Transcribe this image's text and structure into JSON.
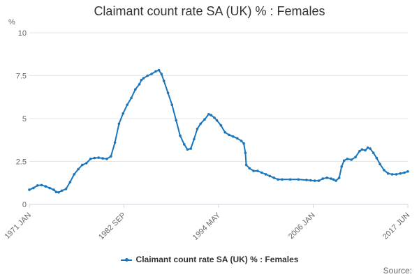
{
  "colors": {
    "series": "#1b75bb",
    "grid": "#e6e6e6",
    "axis": "#ccd6eb"
  },
  "source_label": "Source:",
  "chart_data": {
    "type": "line",
    "title": "Claimant count rate SA (UK) % : Females",
    "unit_label": "%",
    "xlabel": "",
    "ylabel": "%",
    "grid": true,
    "legend_position": "bottom",
    "ylim": [
      0,
      10
    ],
    "yticks": [
      0,
      2.5,
      5,
      7.5,
      10
    ],
    "ytick_labels": [
      "0",
      "2.5",
      "5",
      "7.5",
      "10"
    ],
    "xlim": [
      1971.0,
      2017.42
    ],
    "xticks": [
      "1971 JAN",
      "1982 SEP",
      "1994 MAY",
      "2006 JAN",
      "2017 JUN"
    ],
    "series": [
      {
        "name": "Claimant count rate SA (UK) % : Females",
        "points": [
          [
            1971.0,
            0.85
          ],
          [
            1971.5,
            0.95
          ],
          [
            1972.0,
            1.1
          ],
          [
            1972.5,
            1.12
          ],
          [
            1973.0,
            1.05
          ],
          [
            1973.5,
            0.95
          ],
          [
            1974.0,
            0.85
          ],
          [
            1974.3,
            0.72
          ],
          [
            1974.6,
            0.7
          ],
          [
            1975.0,
            0.8
          ],
          [
            1975.5,
            0.9
          ],
          [
            1976.0,
            1.3
          ],
          [
            1976.5,
            1.75
          ],
          [
            1977.0,
            2.05
          ],
          [
            1977.5,
            2.3
          ],
          [
            1978.0,
            2.4
          ],
          [
            1978.5,
            2.65
          ],
          [
            1979.0,
            2.7
          ],
          [
            1979.5,
            2.72
          ],
          [
            1980.0,
            2.68
          ],
          [
            1980.5,
            2.65
          ],
          [
            1981.0,
            2.8
          ],
          [
            1981.5,
            3.6
          ],
          [
            1982.0,
            4.7
          ],
          [
            1982.5,
            5.3
          ],
          [
            1983.0,
            5.8
          ],
          [
            1983.5,
            6.2
          ],
          [
            1984.0,
            6.7
          ],
          [
            1984.5,
            7.0
          ],
          [
            1984.75,
            7.25
          ],
          [
            1985.0,
            7.35
          ],
          [
            1985.5,
            7.5
          ],
          [
            1986.0,
            7.6
          ],
          [
            1986.5,
            7.75
          ],
          [
            1986.9,
            7.82
          ],
          [
            1987.2,
            7.6
          ],
          [
            1987.5,
            7.2
          ],
          [
            1988.0,
            6.5
          ],
          [
            1988.5,
            5.8
          ],
          [
            1989.0,
            4.9
          ],
          [
            1989.5,
            4.0
          ],
          [
            1990.0,
            3.5
          ],
          [
            1990.4,
            3.2
          ],
          [
            1990.8,
            3.25
          ],
          [
            1991.2,
            3.8
          ],
          [
            1991.6,
            4.4
          ],
          [
            1992.0,
            4.7
          ],
          [
            1992.5,
            4.95
          ],
          [
            1993.0,
            5.25
          ],
          [
            1993.3,
            5.2
          ],
          [
            1993.7,
            5.05
          ],
          [
            1994.0,
            4.9
          ],
          [
            1994.5,
            4.6
          ],
          [
            1995.0,
            4.2
          ],
          [
            1995.5,
            4.05
          ],
          [
            1996.0,
            3.95
          ],
          [
            1996.5,
            3.85
          ],
          [
            1997.0,
            3.7
          ],
          [
            1997.3,
            3.55
          ],
          [
            1997.5,
            3.0
          ],
          [
            1997.6,
            2.3
          ],
          [
            1998.0,
            2.1
          ],
          [
            1998.5,
            1.95
          ],
          [
            1999.0,
            1.95
          ],
          [
            1999.5,
            1.85
          ],
          [
            2000.0,
            1.75
          ],
          [
            2000.5,
            1.65
          ],
          [
            2001.0,
            1.55
          ],
          [
            2001.5,
            1.45
          ],
          [
            2002.0,
            1.45
          ],
          [
            2003.0,
            1.45
          ],
          [
            2004.0,
            1.45
          ],
          [
            2005.0,
            1.42
          ],
          [
            2005.5,
            1.4
          ],
          [
            2006.0,
            1.38
          ],
          [
            2006.5,
            1.38
          ],
          [
            2007.0,
            1.5
          ],
          [
            2007.5,
            1.55
          ],
          [
            2008.0,
            1.5
          ],
          [
            2008.3,
            1.45
          ],
          [
            2008.6,
            1.38
          ],
          [
            2009.0,
            1.55
          ],
          [
            2009.3,
            2.2
          ],
          [
            2009.6,
            2.55
          ],
          [
            2010.0,
            2.65
          ],
          [
            2010.5,
            2.6
          ],
          [
            2011.0,
            2.75
          ],
          [
            2011.5,
            3.1
          ],
          [
            2011.8,
            3.2
          ],
          [
            2012.2,
            3.15
          ],
          [
            2012.5,
            3.3
          ],
          [
            2012.8,
            3.25
          ],
          [
            2013.2,
            3.0
          ],
          [
            2013.6,
            2.7
          ],
          [
            2014.0,
            2.35
          ],
          [
            2014.5,
            2.0
          ],
          [
            2015.0,
            1.8
          ],
          [
            2015.5,
            1.75
          ],
          [
            2016.0,
            1.75
          ],
          [
            2016.5,
            1.8
          ],
          [
            2017.0,
            1.85
          ],
          [
            2017.42,
            1.92
          ]
        ]
      }
    ]
  }
}
